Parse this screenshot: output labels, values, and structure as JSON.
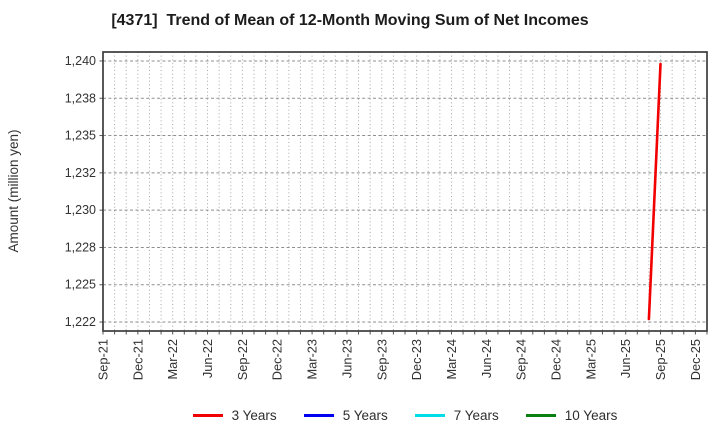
{
  "title": "[4371]  Trend of Mean of 12-Month Moving Sum of Net Incomes",
  "y_axis": {
    "label": "Amount (million yen)",
    "ticks": [
      {
        "value": 1240.0,
        "label": "1,240"
      },
      {
        "value": 1237.5,
        "label": "1,238"
      },
      {
        "value": 1235.0,
        "label": "1,235"
      },
      {
        "value": 1232.5,
        "label": "1,232"
      },
      {
        "value": 1230.0,
        "label": "1,230"
      },
      {
        "value": 1227.5,
        "label": "1,228"
      },
      {
        "value": 1225.0,
        "label": "1,225"
      },
      {
        "value": 1222.5,
        "label": "1,222"
      }
    ]
  },
  "x_axis": {
    "ticks": [
      "Sep-21",
      "Dec-21",
      "Mar-22",
      "Jun-22",
      "Sep-22",
      "Dec-22",
      "Mar-23",
      "Jun-23",
      "Sep-23",
      "Dec-23",
      "Mar-24",
      "Jun-24",
      "Sep-24",
      "Dec-24",
      "Mar-25",
      "Jun-25",
      "Sep-25",
      "Dec-25"
    ]
  },
  "legend": [
    {
      "label": "3 Years",
      "color": "#f20000"
    },
    {
      "label": "5 Years",
      "color": "#0000f0"
    },
    {
      "label": "7 Years",
      "color": "#00dce8"
    },
    {
      "label": "10 Years",
      "color": "#0a8014"
    }
  ],
  "chart_data": {
    "type": "line",
    "title": "[4371]  Trend of Mean of 12-Month Moving Sum of Net Incomes",
    "xlabel": "",
    "ylabel": "Amount (million yen)",
    "ylim": [
      1221.9,
      1240.6
    ],
    "xlim": [
      "Sep-21",
      "Jan-26"
    ],
    "y_tick_values": [
      1240.0,
      1237.5,
      1235.0,
      1232.5,
      1230.0,
      1227.5,
      1225.0,
      1222.5
    ],
    "grid": "on",
    "legend_position": "bottom",
    "series": [
      {
        "name": "3 Years",
        "color": "#f20000",
        "points": [
          [
            "Aug-25",
            1222.7
          ],
          [
            "Sep-25",
            1239.8
          ]
        ]
      },
      {
        "name": "5 Years",
        "color": "#0000f0",
        "points": []
      },
      {
        "name": "7 Years",
        "color": "#00dce8",
        "points": []
      },
      {
        "name": "10 Years",
        "color": "#0a8014",
        "points": []
      }
    ]
  }
}
